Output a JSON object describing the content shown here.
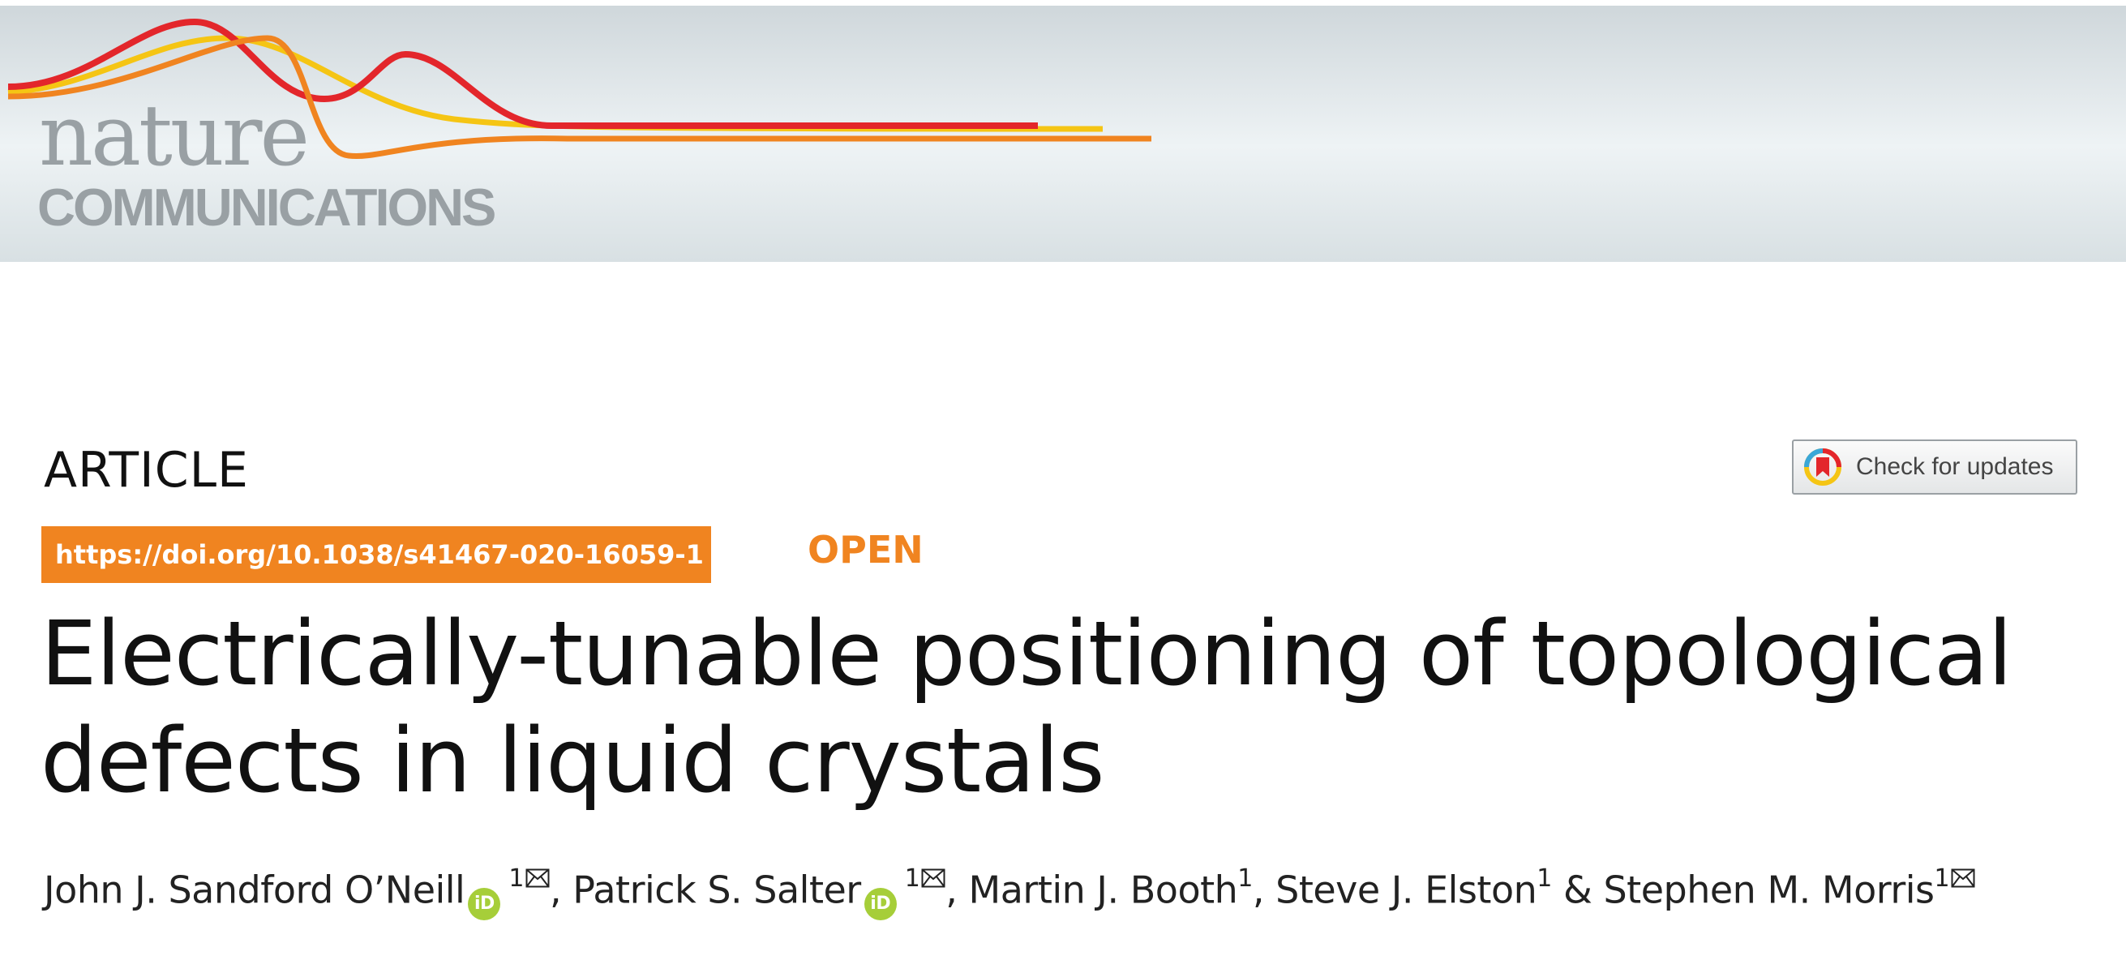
{
  "journal": {
    "logo_line1": "nature",
    "logo_line2": "COMMUNICATIONS",
    "brand_colors": {
      "red": "#e3262b",
      "yellow": "#f5c514",
      "orange": "#f08420",
      "gray": "#99a0a4"
    }
  },
  "article": {
    "type": "ARTICLE",
    "doi": "https://doi.org/10.1038/s41467-020-16059-1",
    "access": "OPEN",
    "check_updates_label": "Check for updates",
    "title": "Electrically-tunable positioning of topological defects in liquid crystals"
  },
  "authors": [
    {
      "name": "John J. Sandford O’Neill",
      "orcid": true,
      "affil": "1",
      "corresponding": true,
      "sep": ", "
    },
    {
      "name": "Patrick S. Salter",
      "orcid": true,
      "affil": "1",
      "corresponding": true,
      "sep": ", "
    },
    {
      "name": "Martin J. Booth",
      "orcid": false,
      "affil": "1",
      "corresponding": false,
      "sep": ", "
    },
    {
      "name": "Steve J. Elston",
      "orcid": false,
      "affil": "1",
      "corresponding": false,
      "sep": " & "
    },
    {
      "name": "Stephen M. Morris",
      "orcid": false,
      "affil": "1",
      "corresponding": true,
      "sep": ""
    }
  ],
  "icons": {
    "orcid": "orcid-icon",
    "envelope": "envelope-icon",
    "crossmark": "crossmark-icon"
  },
  "icon_text": {
    "orcid": "iD"
  }
}
